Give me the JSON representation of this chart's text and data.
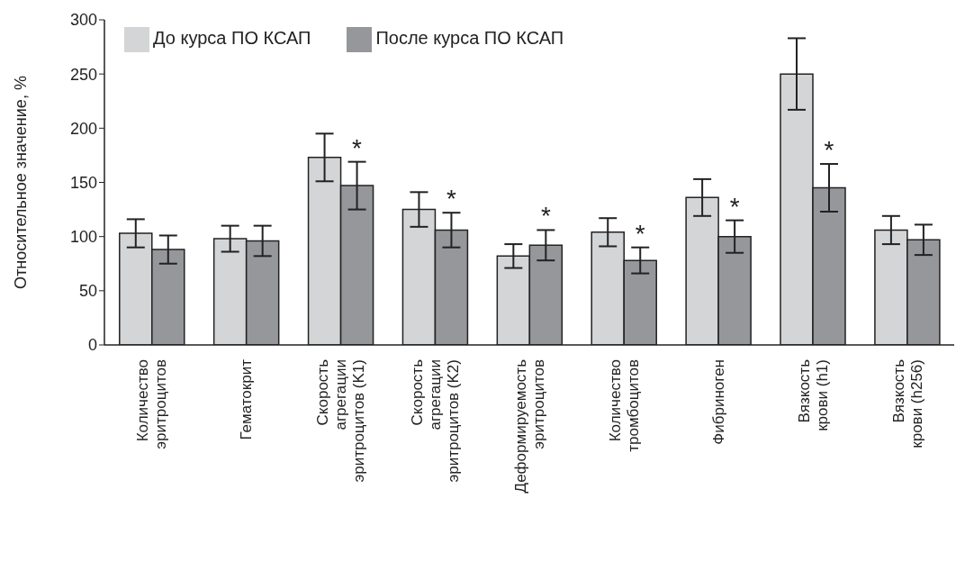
{
  "chart_data": {
    "type": "bar",
    "ylabel": "Относительное значение, %",
    "categories": [
      "Количество\nэритроцитов",
      "Гематокрит",
      "Скорость\nагрегации\nэритроцитов (K1)",
      "Скорость\nагрегации\nэритроцитов (K2)",
      "Деформируемость\nэритроцитов",
      "Количество\nтромбоцитов",
      "Фибриноген",
      "Вязкость\nкрови (h1)",
      "Вязкость\nкрови (h256)"
    ],
    "series": [
      {
        "name": "До курса ПО КСАП",
        "color": "#d4d5d7",
        "values": [
          103,
          98,
          173,
          125,
          82,
          104,
          136,
          250,
          106
        ],
        "errors": [
          13,
          12,
          22,
          16,
          11,
          13,
          17,
          33,
          13
        ]
      },
      {
        "name": "После курса ПО КСАП",
        "color": "#96979b",
        "values": [
          88,
          96,
          147,
          106,
          92,
          78,
          100,
          145,
          97
        ],
        "errors": [
          13,
          14,
          22,
          16,
          14,
          12,
          15,
          22,
          14
        ],
        "value_labels": [
          null,
          null,
          "*",
          "*",
          "*",
          "*",
          "*",
          "*",
          null
        ]
      }
    ],
    "ylim": [
      0,
      300
    ],
    "yticks": [
      0,
      50,
      100,
      150,
      200,
      250,
      300
    ],
    "legend": "top left"
  }
}
